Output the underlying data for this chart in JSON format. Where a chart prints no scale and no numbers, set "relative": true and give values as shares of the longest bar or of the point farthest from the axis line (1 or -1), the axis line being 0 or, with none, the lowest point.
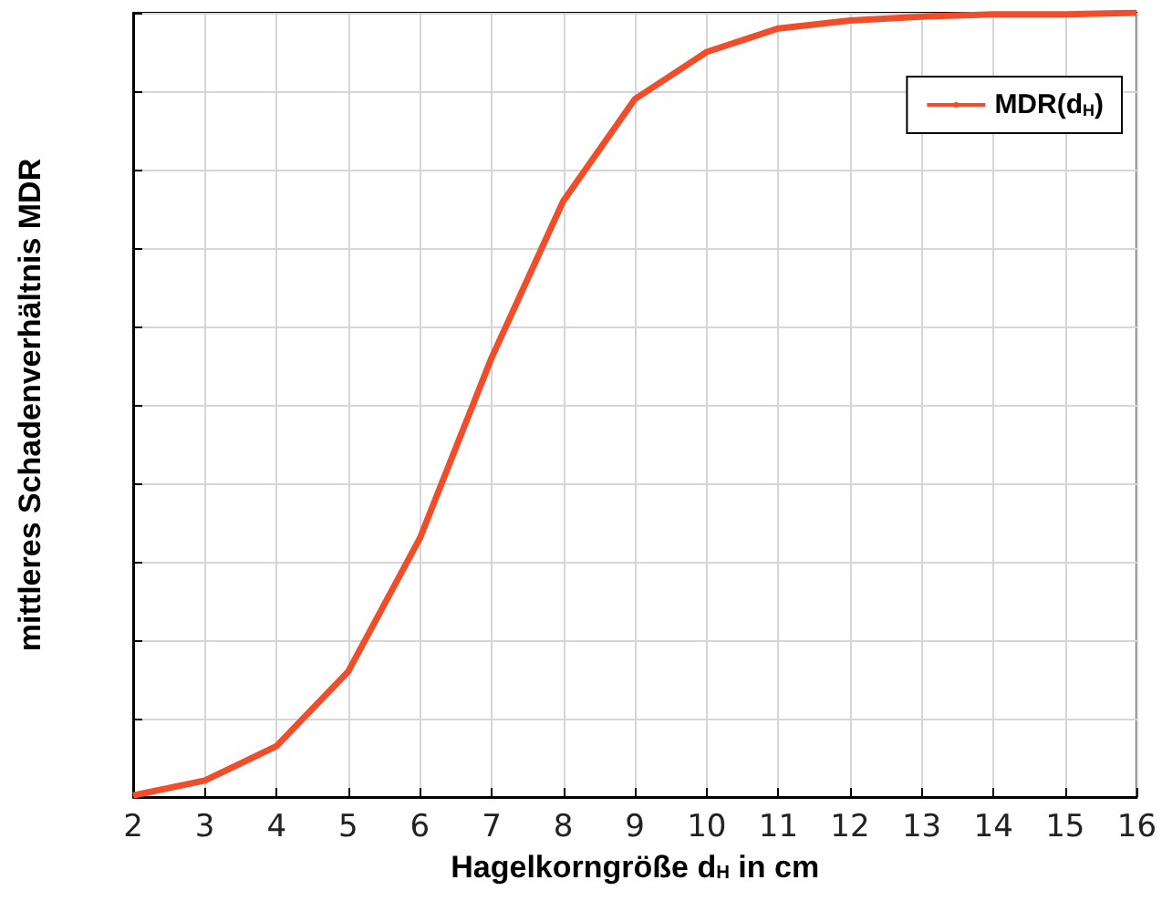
{
  "chart_data": {
    "type": "line",
    "xlabel": "Hagelkorngröße d$_{H}$ in cm",
    "ylabel": "mittleres Schadenverhältnis MDR",
    "relative": true,
    "x": [
      2,
      3,
      4,
      5,
      6,
      7,
      8,
      9,
      10,
      11,
      12,
      13,
      14,
      15,
      16
    ],
    "series": [
      {
        "name": "MDR(d$_{H}$)",
        "color": "#f04e2a",
        "values": [
          0.002,
          0.021,
          0.065,
          0.16,
          0.33,
          0.56,
          0.76,
          0.89,
          0.95,
          0.98,
          0.99,
          0.995,
          0.998,
          0.998,
          1
        ]
      }
    ],
    "xlim": [
      2,
      16
    ],
    "xticks": [
      2,
      3,
      4,
      5,
      6,
      7,
      8,
      9,
      10,
      11,
      12,
      13,
      14,
      15,
      16
    ],
    "grid": true,
    "legend": "top right",
    "marker": "none",
    "line_style": "solid"
  }
}
